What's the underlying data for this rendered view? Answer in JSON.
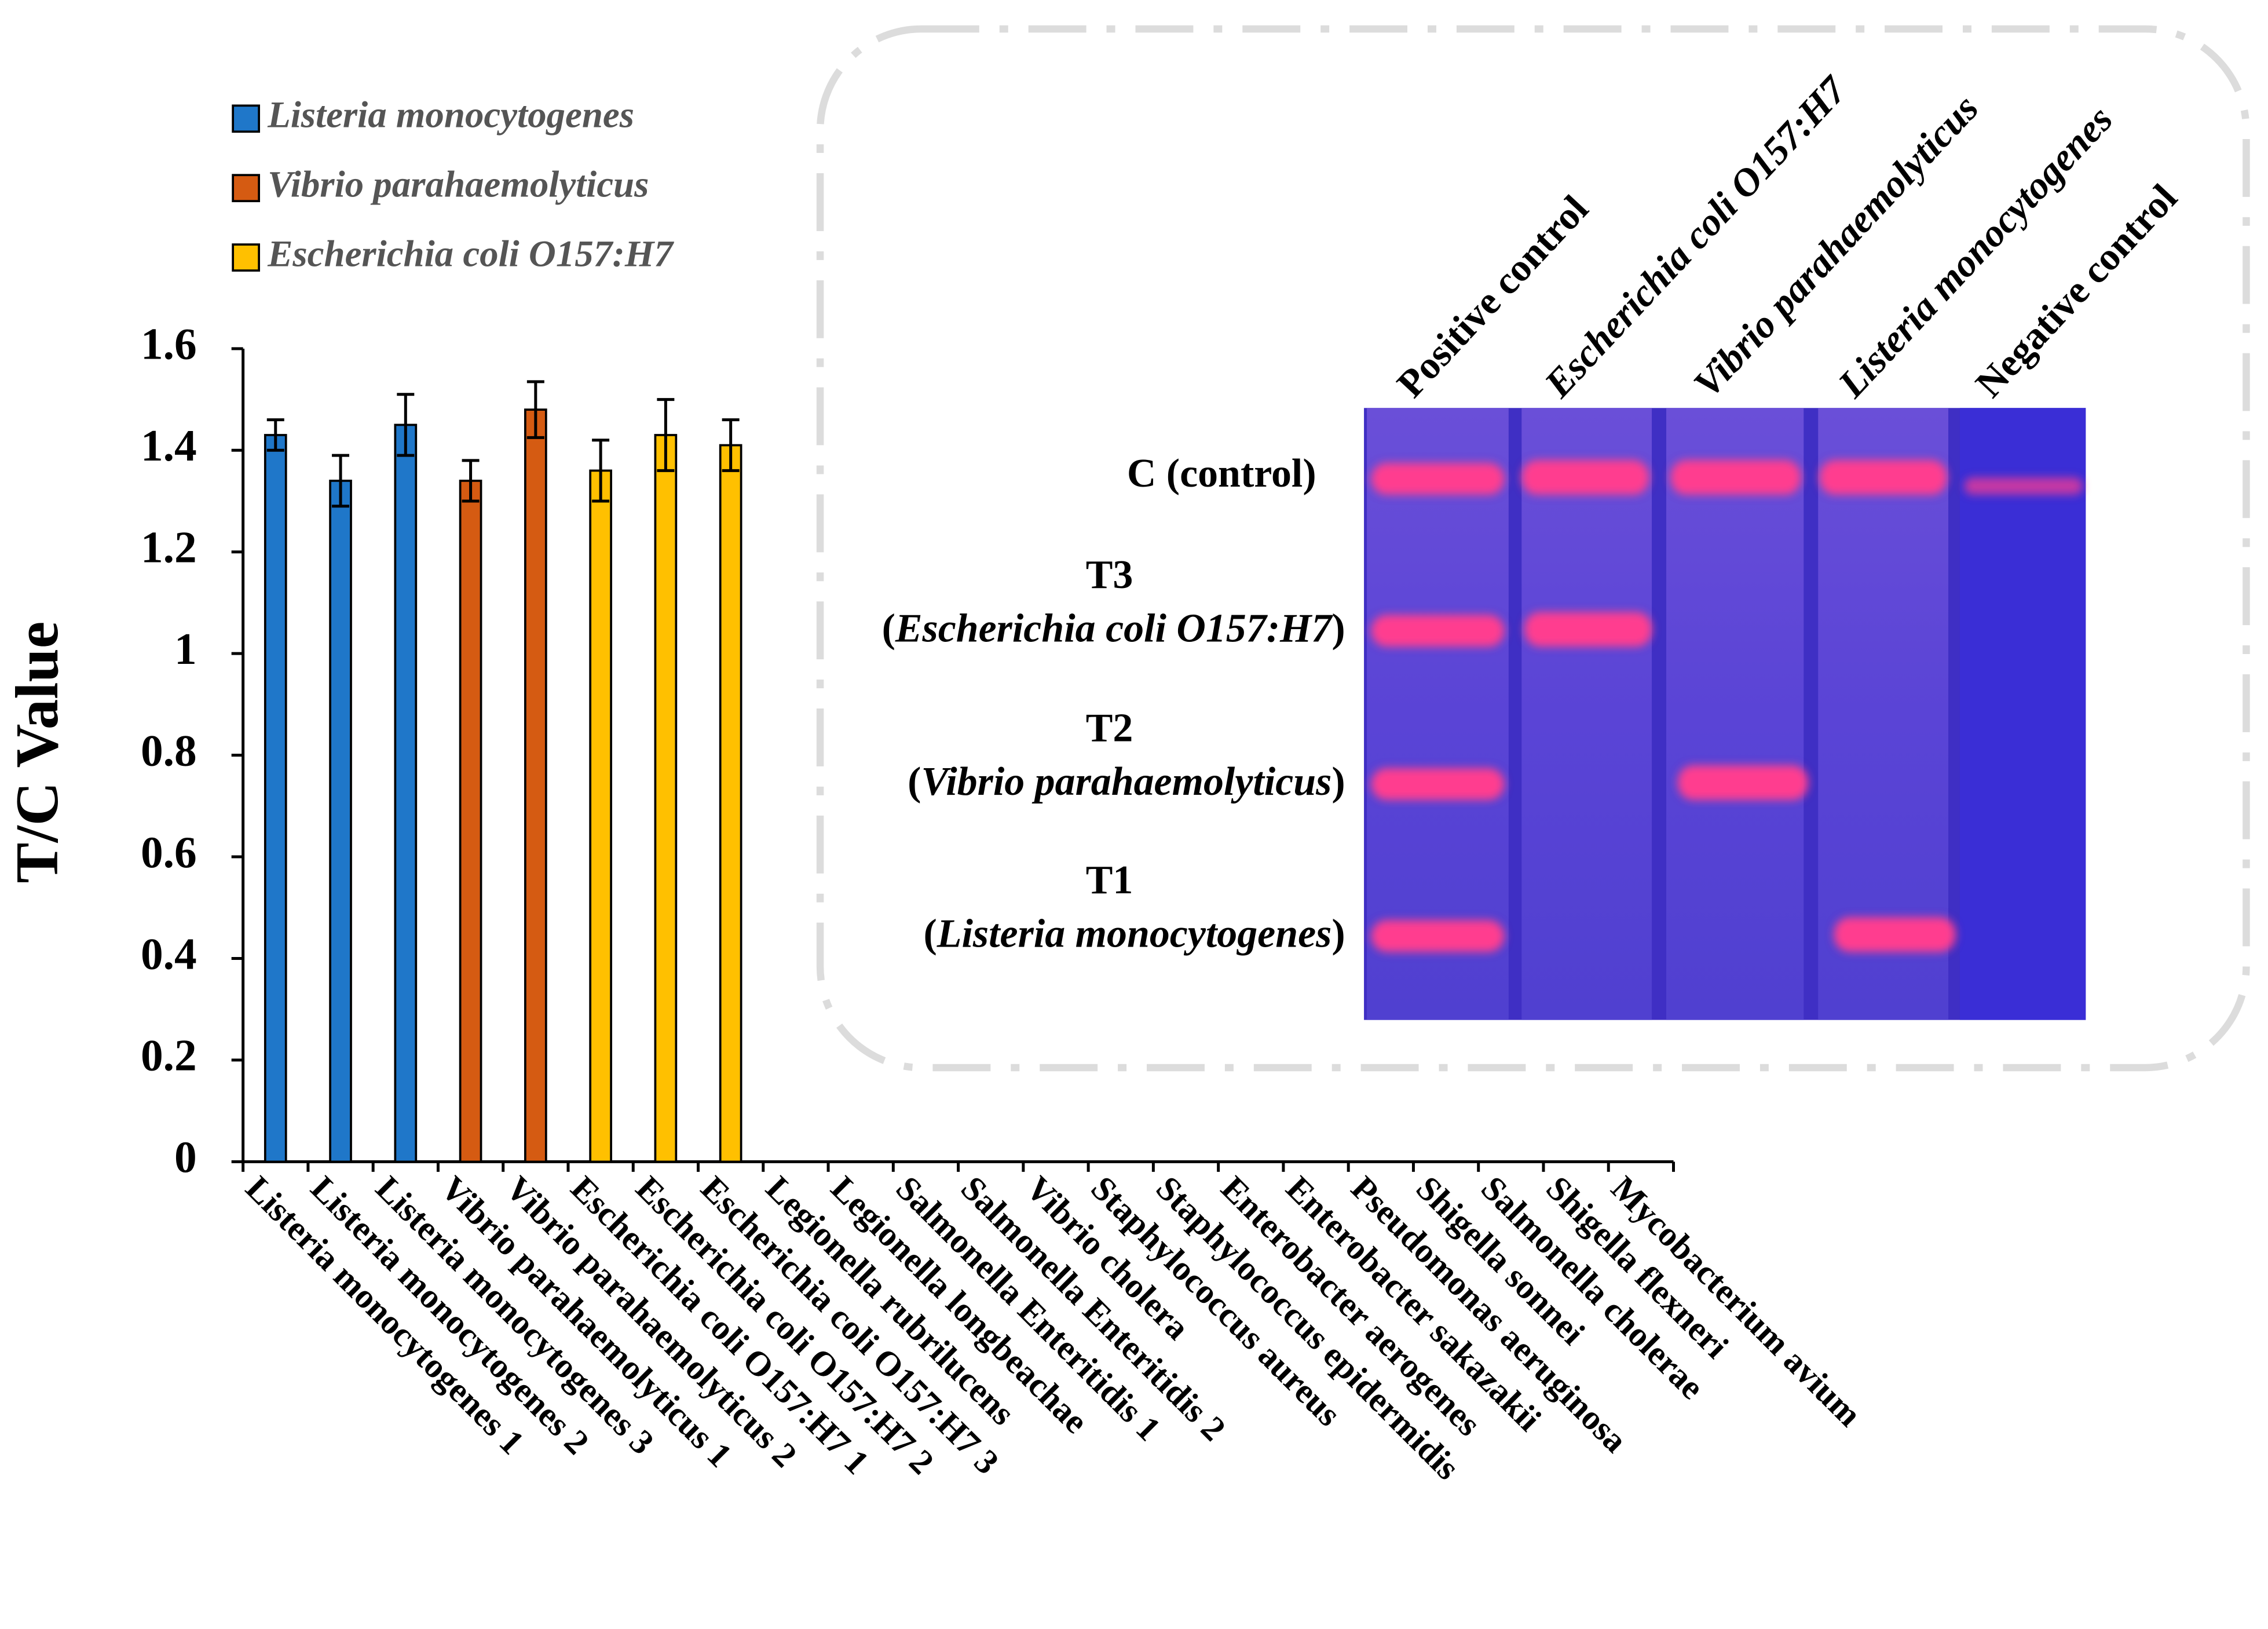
{
  "chart_data": {
    "type": "bar",
    "ylabel": "T/C Value",
    "categories": [
      "Listeria monocytogenes 1",
      "Listeria monocytogenes 2",
      "Listeria monocytogenes 3",
      "Vibrio parahaemolyticus 1",
      "Vibrio parahaemolyticus 2",
      "Escherichia coli O157:H7 1",
      "Escherichia coli O157:H7 2",
      "Escherichia coli O157:H7 3",
      "Legionella rubrilucens",
      "Legionella longbeachae",
      "Salmonella Enteritidis 1",
      "Salmonella Enteritidis 2",
      "Vibrio cholera",
      "Staphylococcus aureus",
      "Staphylococcus epidermidis",
      "Enterobacter aerogenes",
      "Enterobacter sakazakii",
      "Pseudomonas aeruginosa",
      "Shigella sonnei",
      "Salmonella cholerae",
      "Shigella flexneri",
      "Mycobacterium avium"
    ],
    "values": [
      1.43,
      1.34,
      1.45,
      1.34,
      1.48,
      1.36,
      1.43,
      1.41,
      0,
      0,
      0,
      0,
      0,
      0,
      0,
      0,
      0,
      0,
      0,
      0,
      0,
      0
    ],
    "errors": [
      0.03,
      0.05,
      0.06,
      0.04,
      0.055,
      0.06,
      0.07,
      0.05,
      0,
      0,
      0,
      0,
      0,
      0,
      0,
      0,
      0,
      0,
      0,
      0,
      0,
      0
    ],
    "colors": [
      "#1f77c9",
      "#1f77c9",
      "#1f77c9",
      "#d55b12",
      "#d55b12",
      "#ffc000",
      "#ffc000",
      "#ffc000",
      null,
      null,
      null,
      null,
      null,
      null,
      null,
      null,
      null,
      null,
      null,
      null,
      null,
      null
    ],
    "legend": [
      {
        "name": "Listeria monocytogenes",
        "color": "#1f77c9"
      },
      {
        "name": "Vibrio parahaemolyticus",
        "color": "#d55b12"
      },
      {
        "name": "Escherichia coli O157:H7",
        "color": "#ffc000"
      }
    ],
    "ylim": [
      0,
      1.6
    ],
    "yticks": [
      0,
      0.2,
      0.4,
      0.6,
      0.8,
      1,
      1.2,
      1.4,
      1.6
    ],
    "grid": false,
    "inset": {
      "lanes": [
        "Positive control",
        "Escherichia coli O157:H7",
        "Vibrio parahaemolyticus",
        "Listeria monocytogenes",
        "Negative control"
      ],
      "rows": [
        {
          "line1": "C (control)"
        },
        {
          "line1": "T3",
          "line2": [
            "(",
            "Escherichia coli O157:H7",
            ")"
          ]
        },
        {
          "line1": "T2",
          "line2": [
            "(",
            "Vibrio parahaemolyticus",
            ")"
          ]
        },
        {
          "line1": "T1",
          "line2": [
            "(",
            "Listeria monocytogenes",
            ")"
          ]
        }
      ]
    }
  }
}
